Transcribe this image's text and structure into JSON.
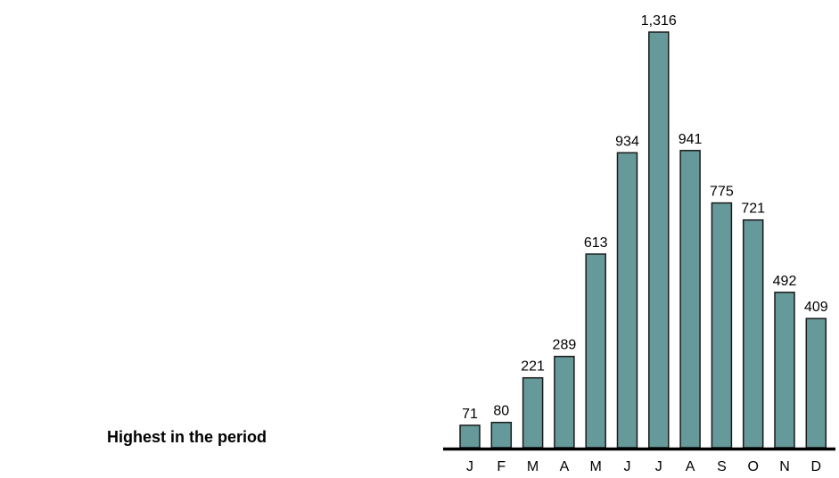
{
  "annotation": "Highest in the period",
  "chart_data": {
    "type": "bar",
    "title": "",
    "xlabel": "",
    "ylabel": "",
    "categories": [
      "J",
      "F",
      "M",
      "A",
      "M",
      "J",
      "J",
      "A",
      "S",
      "O",
      "N",
      "D"
    ],
    "values": [
      71,
      80,
      221,
      289,
      613,
      934,
      1316,
      941,
      775,
      721,
      492,
      409
    ],
    "data_labels": [
      "71",
      "80",
      "221",
      "289",
      "613",
      "934",
      "1,316",
      "941",
      "775",
      "721",
      "492",
      "409"
    ],
    "ylim": [
      0,
      1316
    ],
    "grid": false,
    "legend": "none",
    "bar_color": "#66999a",
    "bar_stroke": "#1a1a1a",
    "baseline_color": "#000000"
  }
}
